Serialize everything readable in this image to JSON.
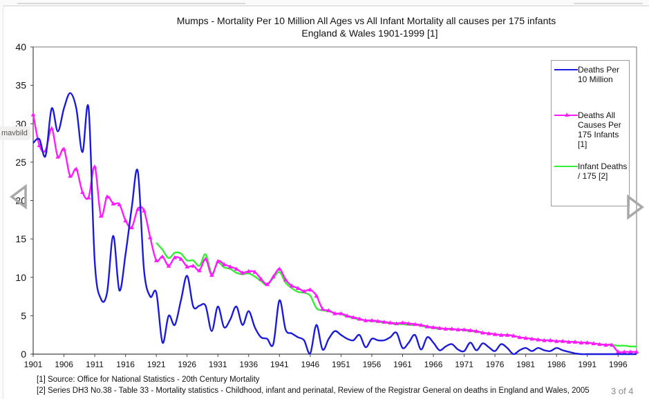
{
  "gallery": {
    "overlay_label": "mavbild",
    "counter": "3 of 4",
    "prev_icon": "chevron-left-triangle-icon",
    "next_icon": "chevron-right-triangle-icon"
  },
  "footnotes": [
    "[1] Source: Office for National Statistics - 20th Century Mortality",
    "[2] Series DH3 No.38 - Table 33 - Mortality statistics - Childhood, infant and perinatal, Review of the Registrar General on deaths in England and Wales, 2005"
  ],
  "chart_data": {
    "type": "line",
    "title": "Mumps - Mortality Per 10 Million All Ages vs All Infant Mortality all causes per 175 infants",
    "subtitle": "England & Wales 1901-1999 [1]",
    "xlabel": "",
    "ylabel": "",
    "xlim": [
      1901,
      1999
    ],
    "ylim": [
      0,
      40
    ],
    "yticks": [
      "0",
      "5",
      "10",
      "15",
      "20",
      "25",
      "30",
      "35",
      "40"
    ],
    "xticks": [
      "1901",
      "1906",
      "1911",
      "1916",
      "1921",
      "1926",
      "1931",
      "1936",
      "1941",
      "1946",
      "1951",
      "1956",
      "1961",
      "1966",
      "1971",
      "1976",
      "1981",
      "1986",
      "1991",
      "1996"
    ],
    "grid": false,
    "legend_position": "top-right",
    "series": [
      {
        "name": "Deaths Per 10 Million",
        "color": "#1a1adb",
        "markers": false,
        "x_start": 1901,
        "values": [
          27.5,
          28,
          25.8,
          32,
          29,
          32,
          34,
          32,
          26.3,
          32,
          12,
          7.2,
          8,
          15.4,
          8.3,
          13,
          19,
          23.8,
          11,
          7.5,
          8,
          1.5,
          5,
          3.8,
          7,
          10.2,
          6.2,
          6.3,
          6.3,
          3,
          6.2,
          3.5,
          4.5,
          6.2,
          3.8,
          5.6,
          3.5,
          2.2,
          2,
          1.3,
          7,
          3.2,
          2.7,
          2.2,
          1.8,
          0.1,
          3.8,
          0.6,
          2,
          3,
          2.5,
          2,
          1.8,
          2.5,
          0.9,
          2,
          1.8,
          1.8,
          2.2,
          2.8,
          0.8,
          1.5,
          2.5,
          0.6,
          2.2,
          1.5,
          0.5,
          1,
          1.3,
          0.6,
          0.4,
          1.5,
          0.5,
          1.4,
          0.9,
          0.4,
          1.3,
          0.8,
          0,
          0.5,
          0.8,
          0.4,
          0.8,
          0.5,
          0.4,
          0.8,
          0.5,
          0.3,
          0.1,
          0,
          0,
          0,
          0,
          0,
          0,
          0,
          0,
          0,
          0
        ]
      },
      {
        "name": "Deaths All Causes Per 175 Infants [1]",
        "color": "#ff1aff",
        "markers": true,
        "x_start": 1901,
        "values": [
          31.2,
          27.2,
          26.5,
          29.4,
          25.7,
          26.7,
          23.2,
          24.1,
          21.1,
          20.4,
          24.4,
          18,
          20.5,
          19.6,
          19.5,
          17.4,
          16.5,
          18.9,
          18.7,
          15.2,
          12.2,
          12.7,
          11.5,
          12.6,
          12.4,
          11.4,
          11.5,
          10.9,
          12.4,
          10.3,
          12.1,
          11.7,
          11.4,
          11.1,
          10.6,
          10.8,
          10.7,
          9.8,
          9.1,
          10.1,
          11.1,
          9.7,
          8.9,
          8.6,
          8.2,
          8.4,
          7.6,
          5.9,
          5.7,
          5.3,
          5.3,
          5,
          4.8,
          4.6,
          4.4,
          4.4,
          4.3,
          4.2,
          4.1,
          4,
          4.1,
          4,
          3.9,
          3.8,
          3.6,
          3.5,
          3.4,
          3.3,
          3.3,
          3.2,
          3.2,
          3.1,
          3,
          2.8,
          2.7,
          2.6,
          2.5,
          2.5,
          2.4,
          2.2,
          2.1,
          2,
          1.9,
          1.8,
          1.8,
          1.7,
          1.7,
          1.6,
          1.6,
          1.5,
          1.5,
          1.4,
          1.3,
          1.2,
          1.2,
          0.3,
          0.3,
          0.3,
          0.3
        ]
      },
      {
        "name": "Infant Deaths / 175 [2]",
        "color": "#33ee33",
        "markers": false,
        "x_start": 1921,
        "values": [
          14.5,
          13.6,
          12.5,
          13.2,
          13.1,
          12.2,
          12.2,
          11.5,
          13,
          10.5,
          11.9,
          11.3,
          11.1,
          10.6,
          10.4,
          10.5,
          10.1,
          9.5,
          9,
          9.9,
          10.7,
          9.3,
          8.6,
          8.1,
          8,
          7.6,
          6,
          5.7,
          5.6,
          5.3,
          5.2,
          4.9,
          4.7,
          4.5,
          4.4,
          4.3,
          4.2,
          4.1,
          4,
          3.9,
          3.9,
          3.8,
          3.8,
          3.7,
          3.5,
          3.4,
          3.3,
          3.3,
          3.2,
          3.2,
          3.1,
          3,
          2.9,
          2.8,
          2.7,
          2.6,
          2.5,
          2.5,
          2.4,
          2.2,
          2.1,
          2,
          1.9,
          1.8,
          1.8,
          1.7,
          1.7,
          1.6,
          1.6,
          1.5,
          1.5,
          1.4,
          1.3,
          1.2,
          1.2,
          1.1,
          1.1,
          1.0,
          1.0
        ]
      }
    ]
  }
}
